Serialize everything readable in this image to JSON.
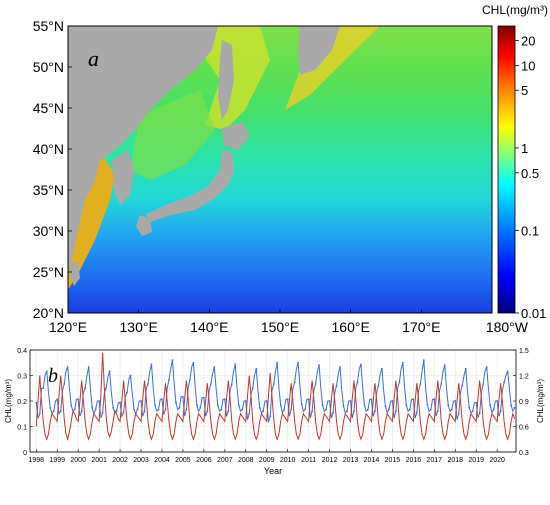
{
  "chart_data": [
    {
      "type": "heatmap",
      "panel_label": "a",
      "colorbar": {
        "title": "CHL(mg/m³)",
        "scale": "log",
        "range": [
          0.01,
          30
        ],
        "tick_values": [
          20,
          10,
          5,
          1,
          0.5,
          0.1,
          0.01
        ],
        "tick_labels": [
          "20",
          "10",
          "5",
          "1",
          "0.5",
          "0.1",
          "0.01"
        ],
        "colormap": [
          "#00007f",
          "#0000ff",
          "#0080ff",
          "#00ffff",
          "#80ff80",
          "#ffff00",
          "#ff8000",
          "#ff0000",
          "#7f0000"
        ]
      },
      "x_range": [
        120,
        180
      ],
      "y_range": [
        20,
        55
      ],
      "x_ticks": [
        120,
        130,
        140,
        150,
        160,
        170,
        180
      ],
      "x_tick_labels": [
        "120°E",
        "130°E",
        "140°E",
        "150°E",
        "160°E",
        "170°E",
        "180°W"
      ],
      "y_ticks": [
        55,
        50,
        45,
        40,
        35,
        30,
        25,
        20
      ],
      "y_tick_labels": [
        "55°N",
        "50°N",
        "45°N",
        "40°N",
        "35°N",
        "30°N",
        "25°N",
        "20°N"
      ],
      "land_color": "#a9a9a9"
    },
    {
      "type": "line",
      "panel_label": "b",
      "xlabel": "Year",
      "ylabel_left": "CHL(mg/m³)",
      "ylabel_right": "CHL(mg/m³)",
      "xlim": [
        1997.7,
        2020.9
      ],
      "ylim_left": [
        0,
        0.4
      ],
      "ylim_right": [
        0.3,
        1.5
      ],
      "y_ticks_left": [
        0,
        0.1,
        0.2,
        0.3,
        0.4
      ],
      "y_tick_labels_left": [
        "0",
        "0.1",
        "0.2",
        "0.3",
        "0.4"
      ],
      "y_ticks_right": [
        0.3,
        0.6,
        0.9,
        1.2,
        1.5
      ],
      "y_tick_labels_right": [
        "0.3",
        "0.6",
        "0.9",
        "1.2",
        "1.5"
      ],
      "x_ticks": [
        1998,
        1999,
        2000,
        2001,
        2002,
        2003,
        2004,
        2005,
        2006,
        2007,
        2008,
        2009,
        2010,
        2011,
        2012,
        2013,
        2014,
        2015,
        2016,
        2017,
        2018,
        2019,
        2020
      ],
      "x_tick_labels": [
        "1998",
        "1999",
        "2000",
        "2001",
        "2002",
        "2003",
        "2004",
        "2005",
        "2006",
        "2007",
        "2008",
        "2009",
        "2010",
        "2011",
        "2012",
        "2013",
        "2014",
        "2015",
        "2016",
        "2017",
        "2018",
        "2019",
        "2020"
      ],
      "grid": true,
      "series": [
        {
          "axis": "right",
          "color": "#3a6fd8",
          "values": [
            0.88,
            0.7,
            0.75,
            1.05,
            1.05,
            1.2,
            1.25,
            1.0,
            0.82,
            0.75,
            0.78,
            0.9,
            0.92,
            0.75,
            0.78,
            1.02,
            1.1,
            1.25,
            1.3,
            1.05,
            0.85,
            0.78,
            0.8,
            0.92,
            0.92,
            0.72,
            0.78,
            1.0,
            1.05,
            1.2,
            1.3,
            1.05,
            0.82,
            0.75,
            0.8,
            0.9,
            0.9,
            0.7,
            0.76,
            1.0,
            1.05,
            1.18,
            1.25,
            1.0,
            0.82,
            0.76,
            0.78,
            0.88,
            0.88,
            0.72,
            0.76,
            0.95,
            1.0,
            1.15,
            1.2,
            0.98,
            0.8,
            0.75,
            0.8,
            0.9,
            0.9,
            0.72,
            0.78,
            1.05,
            1.1,
            1.25,
            1.33,
            1.05,
            0.85,
            0.78,
            0.8,
            0.92,
            0.92,
            0.74,
            0.8,
            1.05,
            1.15,
            1.28,
            1.38,
            1.1,
            0.88,
            0.8,
            0.82,
            0.95,
            0.95,
            0.72,
            0.8,
            1.05,
            1.15,
            1.3,
            1.35,
            1.08,
            0.85,
            0.78,
            0.82,
            0.94,
            0.94,
            0.72,
            0.78,
            1.02,
            1.1,
            1.22,
            1.3,
            1.05,
            0.85,
            0.78,
            0.8,
            0.92,
            0.92,
            0.72,
            0.78,
            1.02,
            1.1,
            1.25,
            1.33,
            1.05,
            0.85,
            0.78,
            0.8,
            0.9,
            0.9,
            0.68,
            0.75,
            0.98,
            1.05,
            1.2,
            1.28,
            1.02,
            0.82,
            0.76,
            0.78,
            0.9,
            0.9,
            0.65,
            0.72,
            1.02,
            1.1,
            1.25,
            1.35,
            1.05,
            0.85,
            0.76,
            0.8,
            0.92,
            0.92,
            0.72,
            0.8,
            1.05,
            1.12,
            1.28,
            1.35,
            1.08,
            0.86,
            0.78,
            0.8,
            0.92,
            0.92,
            0.7,
            0.78,
            1.02,
            1.1,
            1.25,
            1.32,
            1.05,
            0.85,
            0.78,
            0.8,
            0.9,
            0.9,
            0.7,
            0.76,
            1.0,
            1.08,
            1.22,
            1.3,
            1.02,
            0.84,
            0.76,
            0.78,
            0.9,
            0.9,
            0.7,
            0.78,
            1.05,
            1.12,
            1.28,
            1.33,
            1.05,
            0.85,
            0.78,
            0.8,
            0.92,
            0.92,
            0.72,
            0.78,
            1.0,
            1.08,
            1.22,
            1.28,
            1.02,
            0.84,
            0.76,
            0.8,
            0.9,
            0.9,
            0.7,
            0.78,
            1.05,
            1.12,
            1.28,
            1.35,
            1.05,
            0.85,
            0.78,
            0.8,
            0.92,
            0.92,
            0.7,
            0.76,
            1.02,
            1.1,
            1.25,
            1.38,
            1.06,
            0.86,
            0.78,
            0.8,
            0.92,
            0.92,
            0.72,
            0.78,
            1.02,
            1.1,
            1.25,
            1.32,
            1.05,
            0.85,
            0.78,
            0.8,
            0.9,
            0.9,
            0.68,
            0.75,
            1.0,
            1.08,
            1.2,
            1.28,
            1.02,
            0.82,
            0.76,
            0.78,
            0.88,
            0.88,
            0.7,
            0.76,
            1.0,
            1.1,
            1.25,
            1.3,
            1.05,
            0.85,
            0.76,
            0.8,
            0.9,
            0.9,
            0.72,
            0.78,
            1.02,
            1.12,
            1.2,
            1.25,
            1.05,
            0.85,
            0.78,
            0.82
          ]
        },
        {
          "axis": "left",
          "color": "#c0392b",
          "values": [
            0.1,
            0.2,
            0.3,
            0.2,
            0.12,
            0.07,
            0.05,
            0.07,
            0.12,
            0.15,
            0.14,
            0.13,
            0.12,
            0.22,
            0.3,
            0.22,
            0.13,
            0.07,
            0.05,
            0.08,
            0.12,
            0.16,
            0.15,
            0.13,
            0.12,
            0.2,
            0.28,
            0.2,
            0.12,
            0.07,
            0.05,
            0.07,
            0.12,
            0.15,
            0.14,
            0.13,
            0.12,
            0.22,
            0.39,
            0.25,
            0.14,
            0.08,
            0.06,
            0.08,
            0.12,
            0.16,
            0.15,
            0.13,
            0.12,
            0.2,
            0.28,
            0.2,
            0.12,
            0.07,
            0.05,
            0.07,
            0.12,
            0.15,
            0.14,
            0.13,
            0.12,
            0.21,
            0.28,
            0.21,
            0.12,
            0.07,
            0.05,
            0.07,
            0.12,
            0.15,
            0.14,
            0.13,
            0.12,
            0.2,
            0.27,
            0.2,
            0.12,
            0.07,
            0.05,
            0.07,
            0.12,
            0.15,
            0.14,
            0.13,
            0.12,
            0.21,
            0.28,
            0.21,
            0.12,
            0.07,
            0.05,
            0.07,
            0.12,
            0.15,
            0.14,
            0.13,
            0.12,
            0.2,
            0.27,
            0.2,
            0.12,
            0.07,
            0.05,
            0.07,
            0.12,
            0.15,
            0.14,
            0.13,
            0.12,
            0.21,
            0.28,
            0.21,
            0.12,
            0.07,
            0.05,
            0.07,
            0.12,
            0.15,
            0.14,
            0.13,
            0.12,
            0.22,
            0.3,
            0.22,
            0.12,
            0.07,
            0.05,
            0.07,
            0.12,
            0.15,
            0.14,
            0.13,
            0.12,
            0.22,
            0.31,
            0.22,
            0.13,
            0.07,
            0.05,
            0.07,
            0.12,
            0.15,
            0.14,
            0.13,
            0.12,
            0.2,
            0.27,
            0.2,
            0.12,
            0.07,
            0.05,
            0.07,
            0.12,
            0.15,
            0.14,
            0.13,
            0.12,
            0.21,
            0.28,
            0.21,
            0.12,
            0.07,
            0.05,
            0.07,
            0.12,
            0.15,
            0.14,
            0.13,
            0.12,
            0.2,
            0.27,
            0.2,
            0.12,
            0.07,
            0.05,
            0.07,
            0.12,
            0.15,
            0.14,
            0.13,
            0.12,
            0.21,
            0.28,
            0.21,
            0.12,
            0.07,
            0.05,
            0.07,
            0.12,
            0.15,
            0.14,
            0.13,
            0.12,
            0.2,
            0.27,
            0.2,
            0.12,
            0.07,
            0.05,
            0.07,
            0.12,
            0.15,
            0.14,
            0.13,
            0.12,
            0.21,
            0.28,
            0.21,
            0.12,
            0.07,
            0.05,
            0.07,
            0.12,
            0.15,
            0.14,
            0.13,
            0.12,
            0.2,
            0.27,
            0.2,
            0.12,
            0.07,
            0.05,
            0.07,
            0.12,
            0.15,
            0.14,
            0.13,
            0.12,
            0.21,
            0.28,
            0.21,
            0.12,
            0.07,
            0.05,
            0.07,
            0.12,
            0.15,
            0.14,
            0.13,
            0.12,
            0.2,
            0.27,
            0.2,
            0.12,
            0.07,
            0.05,
            0.07,
            0.12,
            0.15,
            0.14,
            0.13,
            0.12,
            0.21,
            0.28,
            0.21,
            0.12,
            0.07,
            0.05,
            0.07,
            0.12,
            0.15,
            0.14,
            0.13,
            0.12,
            0.2,
            0.27,
            0.2,
            0.12,
            0.07,
            0.05,
            0.07,
            0.12,
            0.15,
            0.13
          ]
        }
      ]
    }
  ]
}
